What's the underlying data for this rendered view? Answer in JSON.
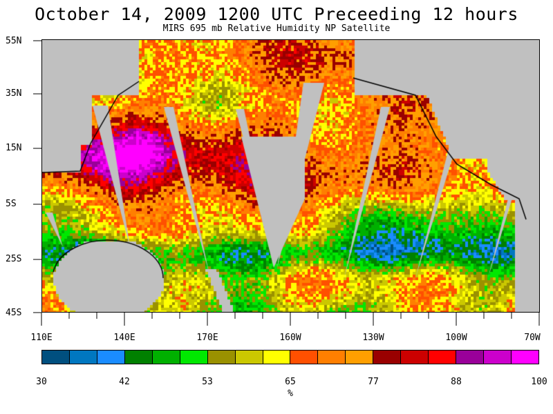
{
  "title": "October 14, 2009  1200 UTC Preceeding 12 hours",
  "subtitle": "MIRS 695 mb Relative Humidity NP Satellite",
  "lat_labels": [
    "55N",
    "35N",
    "15N",
    "5S",
    "25S",
    "45S"
  ],
  "lon_labels": [
    "110E",
    "140E",
    "170E",
    "160W",
    "130W",
    "100W",
    "70W"
  ],
  "colorbar": {
    "colors": [
      "#004f7f",
      "#0077c0",
      "#1a8cff",
      "#008000",
      "#00b000",
      "#00e800",
      "#9a9100",
      "#cbc800",
      "#ffff00",
      "#ff5000",
      "#ff7f00",
      "#ff9f00",
      "#990000",
      "#cc0000",
      "#ff0000",
      "#990099",
      "#cc00cc",
      "#ff00ff"
    ],
    "tick_labels": [
      "30",
      "42",
      "53",
      "65",
      "77",
      "88",
      "100"
    ],
    "unit": "%"
  },
  "map_colors": {
    "land": "#c0c0c0",
    "no_data": "#c0c0c0",
    "coast": "#000000"
  }
}
